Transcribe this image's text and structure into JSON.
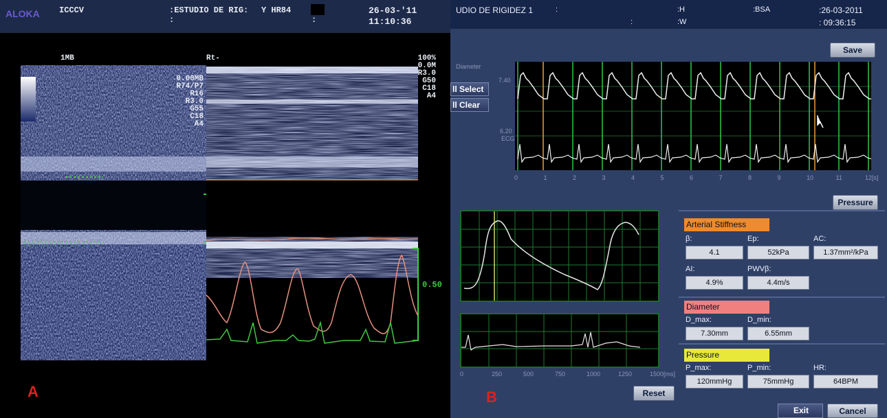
{
  "panel_a": {
    "logo": "ALOKA",
    "institution": "ICCCV",
    "study_line1": ":ESTUDIO DE RIG:",
    "study_line2": ":",
    "hr_label": "Y HR84",
    "colon": ":",
    "date": "26-03-'11",
    "time": "11:10:36",
    "bmode_label": "1MB",
    "mmode_label": "Rt-",
    "bmode_params": [
      "0.00MB",
      "R74/P7",
      "R16",
      "R3.0",
      "G55",
      "C18",
      "A4"
    ],
    "mmode_params": [
      "100%",
      "0.0M",
      "R3.0",
      "G50",
      "C18",
      "A4"
    ],
    "scale_value": "0.50",
    "panel_letter": "A"
  },
  "panel_b": {
    "title": "UDIO DE RIGIDEZ 1",
    "colon1": ":",
    "colon2": ":",
    "h_label": ":H",
    "w_label": ":W",
    "bsa_label": ":BSA",
    "date": ":26-03-2011",
    "time": ": 09:36:15",
    "save_button": "Save",
    "select_button": "ll Select",
    "clear_button": "ll Clear",
    "diameter_axis": "Diameter",
    "ecg_axis": "ECG",
    "y_top": "7.40",
    "y_bottom": "6.20",
    "x_ticks": [
      "0",
      "1",
      "2",
      "3",
      "4",
      "5",
      "6",
      "7",
      "8",
      "9",
      "10",
      "11",
      "12[s]"
    ],
    "pressure_button": "Pressure",
    "small_x_ticks": [
      "0",
      "250",
      "500",
      "750",
      "1000",
      "1250",
      "1500[ms]"
    ],
    "reset_button": "Reset",
    "arterial": {
      "title": "Arterial Stiffness",
      "title_color": "#f08a2a",
      "beta_label": "β:",
      "beta_value": "4.1",
      "ep_label": "Ep:",
      "ep_value": "52kPa",
      "ac_label": "AC:",
      "ac_value": "1.37mm²/kPa",
      "ai_label": "AI:",
      "ai_value": "4.9%",
      "pwv_label": "PWVβ:",
      "pwv_value": "4.4m/s"
    },
    "diameter": {
      "title": "Diameter",
      "title_color": "#f08080",
      "dmax_label": "D_max:",
      "dmax_value": "7.30mm",
      "dmin_label": "D_min:",
      "dmin_value": "6.55mm"
    },
    "pressure": {
      "title": "Pressure",
      "title_color": "#e8e83a",
      "pmax_label": "P_max:",
      "pmax_value": "120mmHg",
      "pmin_label": "P_min:",
      "pmin_value": "75mmHg",
      "hr_label": "HR:",
      "hr_value": "64BPM"
    },
    "exit_button": "Exit",
    "cancel_button": "Cancel",
    "panel_letter": "B"
  }
}
